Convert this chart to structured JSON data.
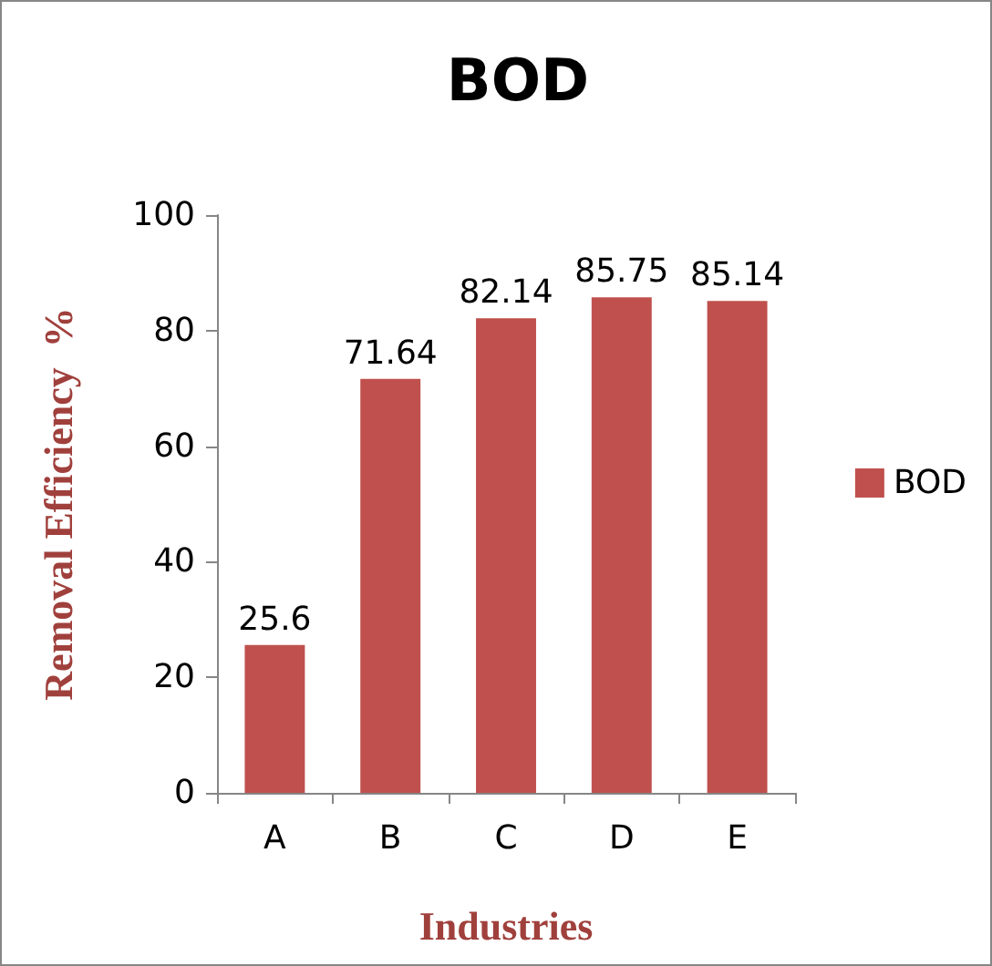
{
  "chart_data": {
    "type": "bar",
    "title": "BOD",
    "xlabel": "Industries",
    "ylabel": "Removal Efficiency  %",
    "categories": [
      "A",
      "B",
      "C",
      "D",
      "E"
    ],
    "series": [
      {
        "name": "BOD",
        "color": "#c0504d",
        "values": [
          25.6,
          71.64,
          82.14,
          85.75,
          85.14
        ]
      }
    ],
    "ylim": [
      0,
      100
    ],
    "yticks": [
      0,
      20,
      40,
      60,
      80,
      100
    ],
    "grid": false,
    "legend": "right",
    "data_labels": true
  }
}
